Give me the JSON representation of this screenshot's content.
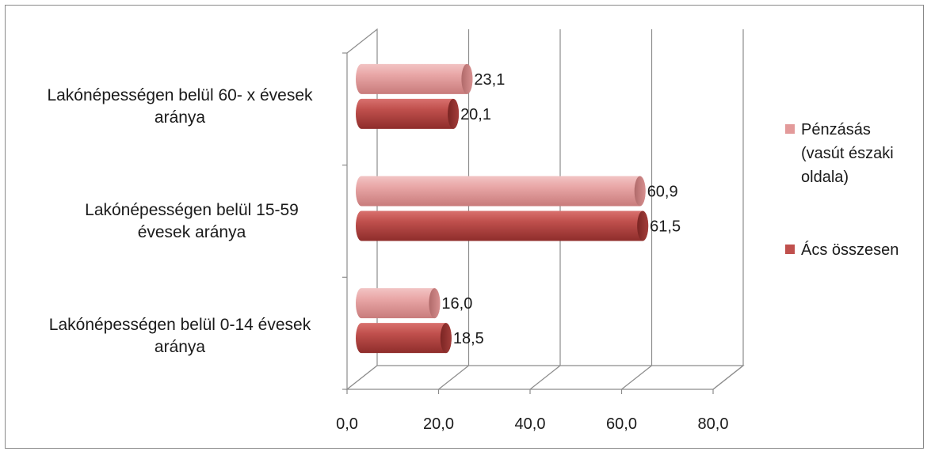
{
  "chart_data": {
    "type": "bar",
    "orientation": "horizontal",
    "style": "3d-cylinder",
    "categories": [
      "Lakónépességen belül 60- x évesek aránya",
      "Lakónépességen belül 15-59 évesek aránya",
      "Lakónépességen belül 0-14 évesek aránya"
    ],
    "series": [
      {
        "name": "Pénzásás (vasút északi oldala)",
        "values": [
          23.1,
          60.9,
          16.0
        ],
        "color": "#e39a9a"
      },
      {
        "name": "Ács összesen",
        "values": [
          20.1,
          61.5,
          18.5
        ],
        "color": "#c0504d"
      }
    ],
    "data_labels": [
      [
        "23,1",
        "60,9",
        "16,0"
      ],
      [
        "20,1",
        "61,5",
        "18,5"
      ]
    ],
    "x_ticks": [
      "0,0",
      "20,0",
      "40,0",
      "60,0",
      "80,0"
    ],
    "xlim": [
      0,
      80
    ],
    "legend": {
      "position": "right",
      "items": [
        {
          "lines": [
            "Pénzásás",
            "(vasút északi",
            "oldala)"
          ],
          "color": "#e39a9a"
        },
        {
          "lines": [
            "Ács összesen"
          ],
          "color": "#c0504d"
        }
      ]
    },
    "grid": true,
    "title": "",
    "xlabel": "",
    "ylabel": ""
  }
}
